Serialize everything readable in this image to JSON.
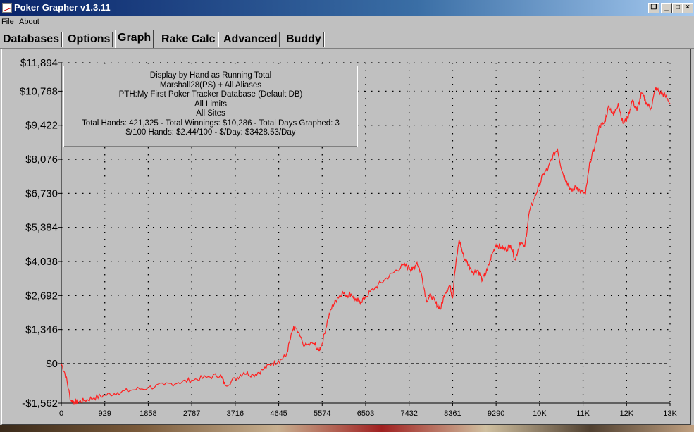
{
  "window": {
    "title": "Poker Grapher v1.3.11"
  },
  "menu": [
    "File",
    "About"
  ],
  "tabs": [
    {
      "label": "Databases",
      "active": false
    },
    {
      "label": "Options",
      "active": false
    },
    {
      "label": "Graph",
      "active": true
    },
    {
      "label": "Rake Calc",
      "active": false
    },
    {
      "label": "Advanced",
      "active": false
    },
    {
      "label": "Buddy",
      "active": false
    }
  ],
  "info_lines": [
    "Display by Hand as Running Total",
    "Marshall28(PS) + All Aliases",
    "PTH:My First Poker Tracker Database (Default DB)",
    "All Limits",
    "All Sites",
    "Total Hands: 421,325 - Total Winnings: $10,286 - Total Days Graphed: 3",
    "$/100 Hands: $2.44/100 - $/Day: $3428.53/Day"
  ],
  "colors": {
    "line": "#ff2020",
    "grid": "#000000",
    "background": "#c0c0c0"
  },
  "chart_data": {
    "type": "line",
    "title": "",
    "xlabel": "",
    "ylabel": "",
    "grid": true,
    "y_tick_labels": [
      "$11,894",
      "$10,768",
      "$9,422",
      "$8,076",
      "$6,730",
      "$5,384",
      "$4,038",
      "$2,692",
      "$1,346",
      "$0",
      "-$1,562"
    ],
    "y_tick_values": [
      11894,
      10768,
      9422,
      8076,
      6730,
      5384,
      4038,
      2692,
      1346,
      0,
      -1562
    ],
    "x_tick_labels": [
      "0",
      "929",
      "1858",
      "2787",
      "3716",
      "4645",
      "5574",
      "6503",
      "7432",
      "8361",
      "9290",
      "10K",
      "11K",
      "12K",
      "13K"
    ],
    "x_tick_values": [
      0,
      929,
      1858,
      2787,
      3716,
      4645,
      5574,
      6503,
      7432,
      8361,
      9290,
      10219,
      11148,
      12077,
      13006
    ],
    "xlim": [
      0,
      13006
    ],
    "ylim": [
      -1562,
      11894
    ],
    "series": [
      {
        "x": [
          0,
          100,
          200,
          280,
          350,
          500,
          700,
          929,
          1200,
          1500,
          1858,
          2200,
          2500,
          2787,
          3100,
          3400,
          3500,
          3716,
          3900,
          4100,
          4300,
          4500,
          4645,
          4800,
          4950,
          5000,
          5200,
          5400,
          5500,
          5574,
          5700,
          5800,
          5900,
          6000,
          6100,
          6200,
          6300,
          6400,
          6503,
          6700,
          6900,
          7100,
          7300,
          7432,
          7500,
          7600,
          7700,
          7800,
          7900,
          8000,
          8100,
          8200,
          8300,
          8361,
          8400,
          8500,
          8600,
          8700,
          8800,
          8900,
          9000,
          9100,
          9200,
          9290,
          9400,
          9500,
          9600,
          9700,
          9800,
          9900,
          10000,
          10100,
          10200,
          10300,
          10400,
          10500,
          10600,
          10700,
          10800,
          10900,
          11000,
          11100,
          11200,
          11300,
          11400,
          11500,
          11600,
          11700,
          11800,
          11900,
          12000,
          12100,
          12200,
          12300,
          12400,
          12500,
          12600,
          12700,
          12800,
          12900,
          13006
        ],
        "values": [
          0,
          -500,
          -1450,
          -1500,
          -1520,
          -1450,
          -1350,
          -1250,
          -1150,
          -1050,
          -950,
          -850,
          -750,
          -650,
          -550,
          -450,
          -850,
          -600,
          -350,
          -450,
          -250,
          0,
          100,
          300,
          1350,
          1400,
          700,
          800,
          500,
          800,
          1800,
          2300,
          2600,
          2800,
          2700,
          2750,
          2500,
          2450,
          2650,
          3000,
          3300,
          3600,
          3900,
          3800,
          3700,
          4000,
          3500,
          2500,
          2700,
          2400,
          2150,
          2800,
          3100,
          2600,
          3500,
          4900,
          4200,
          3900,
          3600,
          3700,
          3300,
          3700,
          4300,
          4700,
          4600,
          4500,
          4700,
          4100,
          4800,
          4600,
          6000,
          6500,
          7000,
          7500,
          7700,
          8200,
          8500,
          7600,
          7200,
          6800,
          7000,
          6800,
          6700,
          8000,
          8600,
          9400,
          9500,
          10200,
          9800,
          10300,
          9500,
          9700,
          10400,
          10000,
          10700,
          10300,
          10100,
          10900,
          10700,
          10600,
          10300
        ]
      }
    ]
  }
}
